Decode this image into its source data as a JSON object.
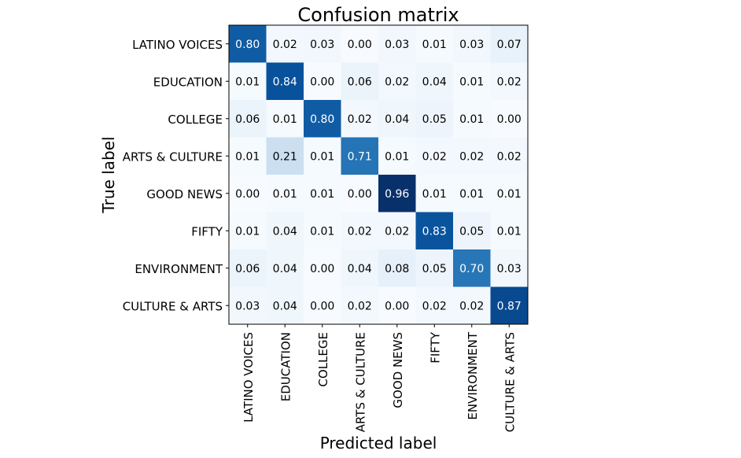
{
  "chart_data": {
    "type": "heatmap",
    "title": "Confusion matrix",
    "xlabel": "Predicted label",
    "ylabel": "True label",
    "row_labels": [
      "LATINO VOICES",
      "EDUCATION",
      "COLLEGE",
      "ARTS & CULTURE",
      "GOOD NEWS",
      "FIFTY",
      "ENVIRONMENT",
      "CULTURE & ARTS"
    ],
    "col_labels": [
      "LATINO VOICES",
      "EDUCATION",
      "COLLEGE",
      "ARTS & CULTURE",
      "GOOD NEWS",
      "FIFTY",
      "ENVIRONMENT",
      "CULTURE & ARTS"
    ],
    "values": [
      [
        0.8,
        0.02,
        0.03,
        0.0,
        0.03,
        0.01,
        0.03,
        0.07
      ],
      [
        0.01,
        0.84,
        0.0,
        0.06,
        0.02,
        0.04,
        0.01,
        0.02
      ],
      [
        0.06,
        0.01,
        0.8,
        0.02,
        0.04,
        0.05,
        0.01,
        0.0
      ],
      [
        0.01,
        0.21,
        0.01,
        0.71,
        0.01,
        0.02,
        0.02,
        0.02
      ],
      [
        0.0,
        0.01,
        0.01,
        0.0,
        0.96,
        0.01,
        0.01,
        0.01
      ],
      [
        0.01,
        0.04,
        0.01,
        0.02,
        0.02,
        0.83,
        0.05,
        0.01
      ],
      [
        0.06,
        0.04,
        0.0,
        0.04,
        0.08,
        0.05,
        0.7,
        0.03
      ],
      [
        0.03,
        0.04,
        0.0,
        0.02,
        0.0,
        0.02,
        0.02,
        0.87
      ]
    ],
    "value_format": "2 decimals",
    "colormap": "Blues",
    "colors": {
      "low": "#f7fbff",
      "high": "#08306b",
      "text_dark": "#000000",
      "text_light": "#ffffff"
    },
    "grid": false,
    "legend": "none"
  }
}
